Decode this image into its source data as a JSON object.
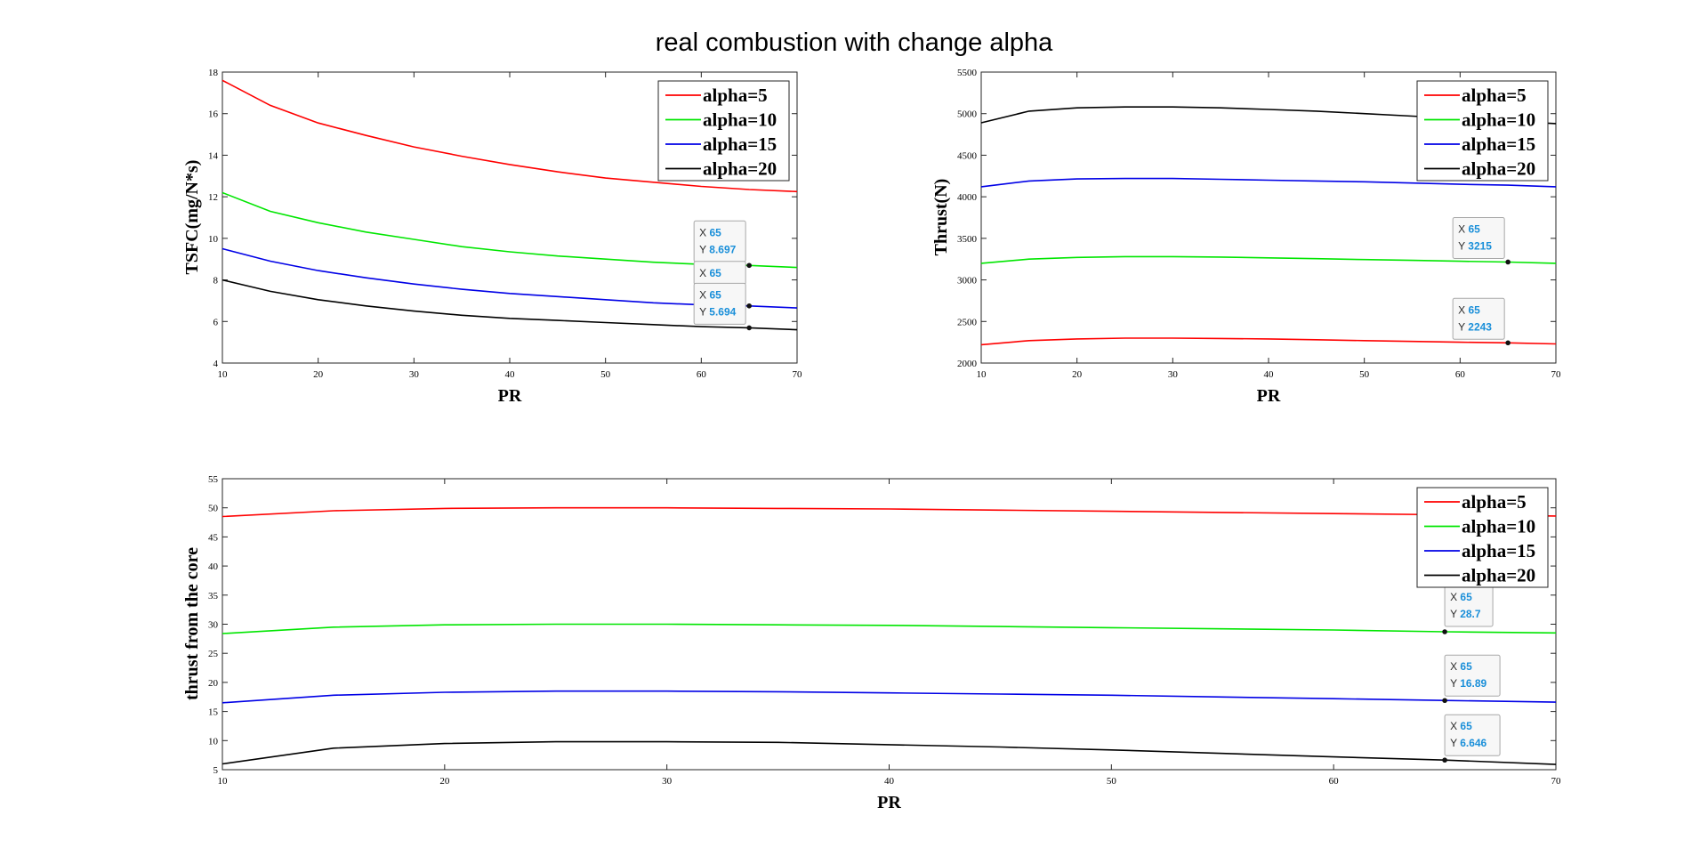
{
  "figure_title": "real combustion with change alpha",
  "legend_entries": [
    "alpha=5",
    "alpha=10",
    "alpha=15",
    "alpha=20"
  ],
  "series_colors": [
    "#ff0000",
    "#00e600",
    "#0000e6",
    "#000000"
  ],
  "chart_data": [
    {
      "type": "line",
      "xlabel": "PR",
      "ylabel": "TSFC(mg/N*s)",
      "xlim": [
        10,
        70
      ],
      "ylim": [
        4,
        18
      ],
      "xticks": [
        10,
        20,
        30,
        40,
        50,
        60,
        70
      ],
      "yticks": [
        4,
        6,
        8,
        10,
        12,
        14,
        16,
        18
      ],
      "legend_position": "top-right",
      "grid": false,
      "x": [
        10,
        15,
        20,
        25,
        30,
        35,
        40,
        45,
        50,
        55,
        60,
        65,
        70
      ],
      "series": [
        {
          "name": "alpha=5",
          "values": [
            17.6,
            16.4,
            15.55,
            14.95,
            14.4,
            13.95,
            13.55,
            13.2,
            12.9,
            12.7,
            12.5,
            12.35,
            12.25
          ]
        },
        {
          "name": "alpha=10",
          "values": [
            12.2,
            11.3,
            10.75,
            10.3,
            9.95,
            9.6,
            9.35,
            9.15,
            9.0,
            8.85,
            8.75,
            8.697,
            8.6
          ]
        },
        {
          "name": "alpha=15",
          "values": [
            9.5,
            8.9,
            8.45,
            8.1,
            7.8,
            7.55,
            7.35,
            7.2,
            7.05,
            6.9,
            6.8,
            6.75,
            6.65
          ]
        },
        {
          "name": "alpha=20",
          "values": [
            8.0,
            7.45,
            7.05,
            6.75,
            6.5,
            6.3,
            6.15,
            6.05,
            5.95,
            5.85,
            5.75,
            5.694,
            5.6
          ]
        }
      ],
      "datatips": [
        {
          "x": 65,
          "y": 8.697,
          "x_text": "65",
          "y_text": "8.697",
          "series": 1,
          "show_y": true
        },
        {
          "x": 65,
          "y": 6.75,
          "x_text": "65",
          "y_text": "",
          "series": 2,
          "show_y": false
        },
        {
          "x": 65,
          "y": 5.694,
          "x_text": "65",
          "y_text": "5.694",
          "series": 3,
          "show_y": true
        }
      ]
    },
    {
      "type": "line",
      "xlabel": "PR",
      "ylabel": "Thrust(N)",
      "xlim": [
        10,
        70
      ],
      "ylim": [
        2000,
        5500
      ],
      "xticks": [
        10,
        20,
        30,
        40,
        50,
        60,
        70
      ],
      "yticks": [
        2000,
        2500,
        3000,
        3500,
        4000,
        4500,
        5000,
        5500
      ],
      "legend_position": "top-right",
      "grid": false,
      "x": [
        10,
        15,
        20,
        25,
        30,
        35,
        40,
        45,
        50,
        55,
        60,
        65,
        70
      ],
      "series": [
        {
          "name": "alpha=5",
          "values": [
            2220,
            2270,
            2290,
            2300,
            2300,
            2295,
            2290,
            2280,
            2270,
            2260,
            2250,
            2243,
            2230
          ]
        },
        {
          "name": "alpha=10",
          "values": [
            3200,
            3250,
            3270,
            3280,
            3280,
            3275,
            3265,
            3255,
            3245,
            3235,
            3225,
            3215,
            3200
          ]
        },
        {
          "name": "alpha=15",
          "values": [
            4120,
            4190,
            4215,
            4220,
            4220,
            4210,
            4200,
            4190,
            4180,
            4165,
            4150,
            4140,
            4120
          ]
        },
        {
          "name": "alpha=20",
          "values": [
            4890,
            5030,
            5070,
            5080,
            5080,
            5070,
            5050,
            5030,
            5000,
            4970,
            4940,
            4910,
            4880
          ]
        }
      ],
      "datatips": [
        {
          "x": 65,
          "y": 3215,
          "x_text": "65",
          "y_text": "3215",
          "series": 1,
          "show_y": true
        },
        {
          "x": 65,
          "y": 2243,
          "x_text": "65",
          "y_text": "2243",
          "series": 0,
          "show_y": true
        }
      ]
    },
    {
      "type": "line",
      "xlabel": "PR",
      "ylabel": "thrust from the core",
      "xlim": [
        10,
        70
      ],
      "ylim": [
        5,
        55
      ],
      "xticks": [
        10,
        20,
        30,
        40,
        50,
        60,
        70
      ],
      "yticks": [
        5,
        10,
        15,
        20,
        25,
        30,
        35,
        40,
        45,
        50,
        55
      ],
      "legend_position": "top-right",
      "grid": false,
      "x": [
        10,
        15,
        20,
        25,
        30,
        35,
        40,
        45,
        50,
        55,
        60,
        65,
        70
      ],
      "series": [
        {
          "name": "alpha=5",
          "values": [
            48.5,
            49.5,
            49.9,
            50.0,
            50.0,
            49.9,
            49.8,
            49.6,
            49.4,
            49.2,
            49.0,
            48.8,
            48.6
          ]
        },
        {
          "name": "alpha=10",
          "values": [
            28.4,
            29.5,
            29.9,
            30.0,
            30.0,
            29.9,
            29.8,
            29.6,
            29.4,
            29.2,
            29.0,
            28.7,
            28.5
          ]
        },
        {
          "name": "alpha=15",
          "values": [
            16.5,
            17.8,
            18.3,
            18.5,
            18.5,
            18.4,
            18.2,
            18.0,
            17.8,
            17.5,
            17.2,
            16.89,
            16.6
          ]
        },
        {
          "name": "alpha=20",
          "values": [
            6.0,
            8.7,
            9.5,
            9.8,
            9.8,
            9.7,
            9.3,
            8.9,
            8.4,
            7.8,
            7.2,
            6.646,
            5.9
          ]
        }
      ],
      "datatips": [
        {
          "x": 65,
          "y": 28.7,
          "x_text": "65",
          "y_text": "28.7",
          "series": 1,
          "show_y": true
        },
        {
          "x": 65,
          "y": 16.89,
          "x_text": "65",
          "y_text": "16.89",
          "series": 2,
          "show_y": true
        },
        {
          "x": 65,
          "y": 6.646,
          "x_text": "65",
          "y_text": "6.646",
          "series": 3,
          "show_y": true
        }
      ]
    }
  ]
}
